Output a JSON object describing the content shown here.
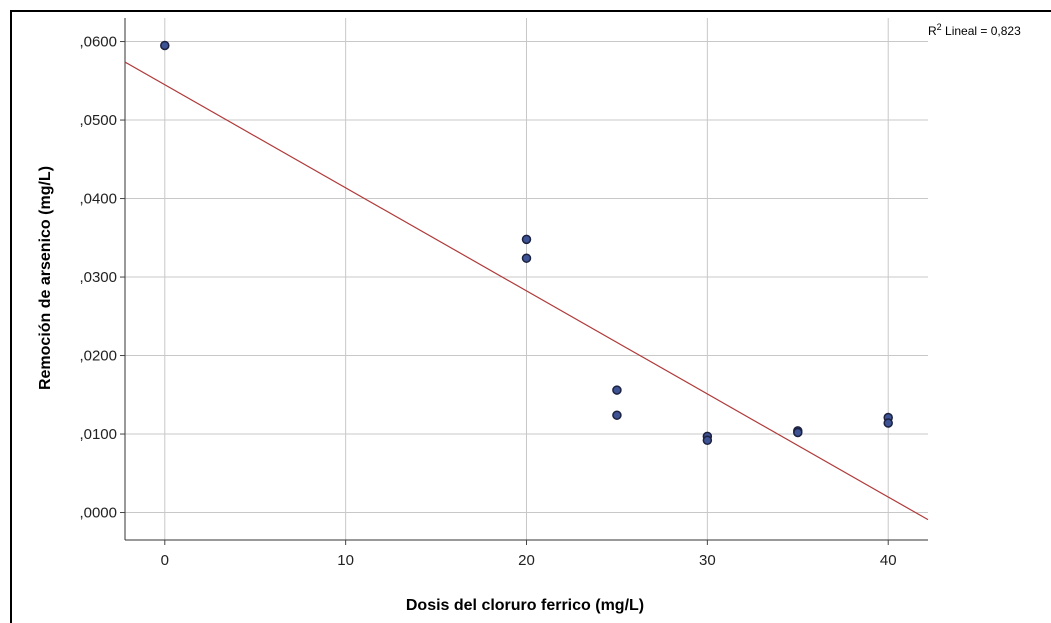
{
  "chart_data": {
    "type": "scatter",
    "xlabel": "Dosis del cloruro ferrico (mg/L)",
    "ylabel": "Remoción de arsenico (mg/L)",
    "xlim": [
      -2.2,
      42.2
    ],
    "ylim": [
      -0.0035,
      0.063
    ],
    "x_ticks": [
      0,
      10,
      20,
      30,
      40
    ],
    "x_tick_labels": [
      "0",
      "10",
      "20",
      "30",
      "40"
    ],
    "y_ticks": [
      0,
      0.01,
      0.02,
      0.03,
      0.04,
      0.05,
      0.06
    ],
    "y_tick_labels": [
      ",0000",
      ",0100",
      ",0200",
      ",0300",
      ",0400",
      ",0500",
      ",0600"
    ],
    "grid": true,
    "points": [
      {
        "x": 0,
        "y": 0.0595
      },
      {
        "x": 20,
        "y": 0.0348
      },
      {
        "x": 20,
        "y": 0.0324
      },
      {
        "x": 25,
        "y": 0.0156
      },
      {
        "x": 25,
        "y": 0.0124
      },
      {
        "x": 30,
        "y": 0.0097
      },
      {
        "x": 30,
        "y": 0.0092
      },
      {
        "x": 35,
        "y": 0.0104
      },
      {
        "x": 35,
        "y": 0.0102
      },
      {
        "x": 40,
        "y": 0.0121
      },
      {
        "x": 40,
        "y": 0.0114
      }
    ],
    "fit_line": {
      "intercept": 0.0545,
      "slope": -0.001313
    },
    "annotation": {
      "prefix": "R",
      "sup": "2",
      "text": " Lineal = 0,823"
    },
    "colors": {
      "point_fill": "#3d5393",
      "point_stroke": "#1c2140",
      "fit_line": "#b03a3a",
      "grid": "#c8c8c8"
    }
  }
}
